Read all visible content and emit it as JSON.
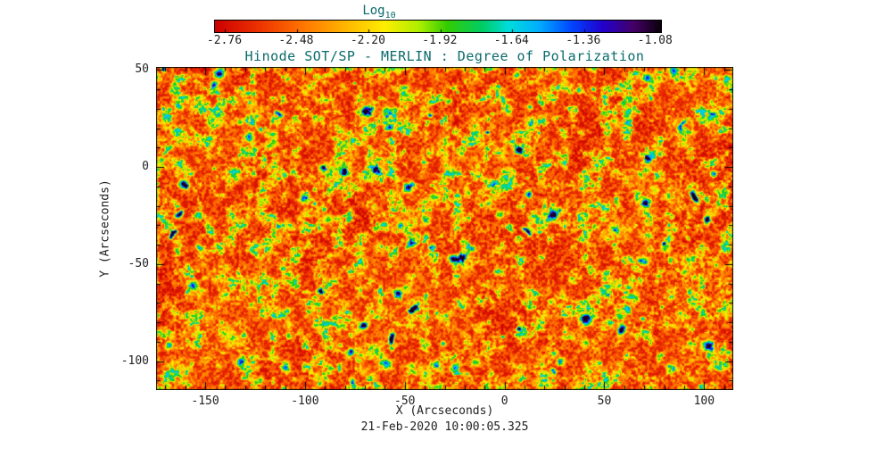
{
  "chart_data": {
    "type": "heatmap",
    "title": "Hinode SOT/SP - MERLIN : Degree of Polarization",
    "xlabel": "X (Arcseconds)",
    "ylabel": "Y (Arcseconds)",
    "timestamp": "21-Feb-2020 10:00:05.325",
    "xlim": [
      -174.6,
      114.6
    ],
    "ylim": [
      -114.9,
      51.5
    ],
    "x_ticks": [
      -150,
      -100,
      -50,
      0,
      50,
      100
    ],
    "y_ticks": [
      50,
      0,
      -50,
      -100
    ],
    "minor_tick_step": 10,
    "grid": false,
    "legend_position": "none",
    "colorbar": {
      "label": "Log",
      "label_subscript": "10",
      "tick_labels": [
        "-2.76",
        "-2.48",
        "-2.20",
        "-1.92",
        "-1.64",
        "-1.36",
        "-1.08"
      ],
      "tick_values": [
        -2.76,
        -2.48,
        -2.2,
        -1.92,
        -1.64,
        -1.36,
        -1.08
      ],
      "bar_range": [
        -2.8,
        -1.06
      ],
      "orientation": "horizontal"
    },
    "value_description": "Log10 of degree of polarization across the solar field of view: quiet-sun background near -2.5 (red/orange speckle), magnetic network filaments near -2.0 (yellow/green), compact flux concentrations reaching -1.6 to -1.1 (cyan, blue, black cores)",
    "colormap": [
      {
        "pos": 0.0,
        "color": "#cc0000"
      },
      {
        "pos": 0.1,
        "color": "#ee3300"
      },
      {
        "pos": 0.2,
        "color": "#ff7700"
      },
      {
        "pos": 0.3,
        "color": "#ffbb00"
      },
      {
        "pos": 0.38,
        "color": "#ffee00"
      },
      {
        "pos": 0.46,
        "color": "#aaee00"
      },
      {
        "pos": 0.52,
        "color": "#33cc00"
      },
      {
        "pos": 0.6,
        "color": "#00cc66"
      },
      {
        "pos": 0.66,
        "color": "#00dddd"
      },
      {
        "pos": 0.73,
        "color": "#00aaff"
      },
      {
        "pos": 0.8,
        "color": "#0044ff"
      },
      {
        "pos": 0.87,
        "color": "#2200cc"
      },
      {
        "pos": 0.94,
        "color": "#440066"
      },
      {
        "pos": 1.0,
        "color": "#0a000a"
      }
    ]
  },
  "colors": {
    "background": "#ffffff",
    "title_text": "#0a6a6a",
    "tick_text": "#222222",
    "frame": "#000000"
  }
}
